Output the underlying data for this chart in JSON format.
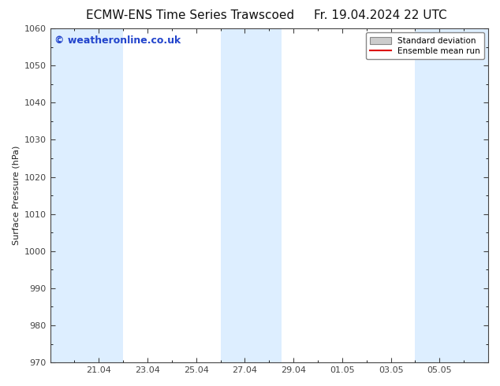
{
  "title_left": "ECMW-ENS Time Series Trawscoed",
  "title_right": "Fr. 19.04.2024 22 UTC",
  "ylabel": "Surface Pressure (hPa)",
  "ylim": [
    970,
    1060
  ],
  "yticks": [
    970,
    980,
    990,
    1000,
    1010,
    1020,
    1030,
    1040,
    1050,
    1060
  ],
  "xtick_labels": [
    "21.04",
    "23.04",
    "25.04",
    "27.04",
    "29.04",
    "01.05",
    "03.05",
    "05.05"
  ],
  "xtick_positions": [
    2,
    4,
    6,
    8,
    10,
    12,
    14,
    16
  ],
  "xlim": [
    0,
    18
  ],
  "shaded_bands": [
    {
      "x_start": 0.0,
      "x_end": 3.0
    },
    {
      "x_start": 7.0,
      "x_end": 9.5
    },
    {
      "x_start": 15.0,
      "x_end": 18.0
    }
  ],
  "shade_color": "#ddeeff",
  "background_color": "#ffffff",
  "watermark_text": "© weatheronline.co.uk",
  "watermark_color": "#2244cc",
  "watermark_fontsize": 9,
  "legend_std_label": "Standard deviation",
  "legend_mean_label": "Ensemble mean run",
  "legend_std_facecolor": "#cccccc",
  "legend_std_edgecolor": "#888888",
  "legend_mean_color": "#dd0000",
  "title_fontsize": 11,
  "ylabel_fontsize": 8,
  "tick_fontsize": 8,
  "fig_width": 6.34,
  "fig_height": 4.9,
  "dpi": 100,
  "spine_color": "#444444",
  "tick_color": "#444444",
  "minor_ytick_interval": 5
}
